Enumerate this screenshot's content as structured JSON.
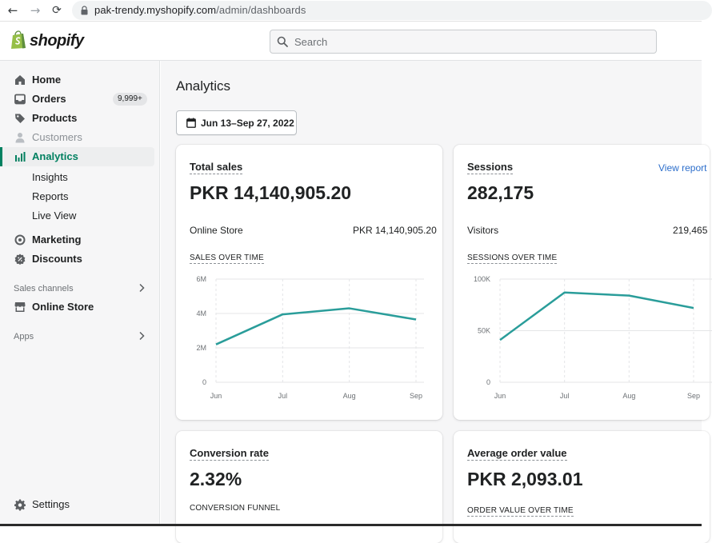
{
  "browser": {
    "url_host": "pak-trendy.myshopify.com",
    "url_path": "/admin/dashboards"
  },
  "header": {
    "logo_text": "shopify",
    "search_placeholder": "Search"
  },
  "sidebar": {
    "items": [
      {
        "label": "Home",
        "icon": "home-icon"
      },
      {
        "label": "Orders",
        "icon": "inbox-icon",
        "badge": "9,999+"
      },
      {
        "label": "Products",
        "icon": "tag-icon"
      },
      {
        "label": "Customers",
        "icon": "person-icon",
        "disabled": true
      },
      {
        "label": "Analytics",
        "icon": "bar-chart-icon",
        "active": true
      },
      {
        "label": "Marketing",
        "icon": "target-icon"
      },
      {
        "label": "Discounts",
        "icon": "discount-icon"
      }
    ],
    "analytics_subitems": [
      "Insights",
      "Reports",
      "Live View"
    ],
    "sales_channels_label": "Sales channels",
    "online_store_label": "Online Store",
    "apps_label": "Apps",
    "settings_label": "Settings"
  },
  "main": {
    "title": "Analytics",
    "date_range": "Jun 13–Sep 27, 2022",
    "view_report": "View report",
    "cards": {
      "total_sales": {
        "title": "Total sales",
        "value": "PKR 14,140,905.20",
        "row_label": "Online Store",
        "row_value": "PKR 14,140,905.20",
        "chart_label": "SALES OVER TIME"
      },
      "sessions": {
        "title": "Sessions",
        "value": "282,175",
        "row_label": "Visitors",
        "row_value": "219,465",
        "chart_label": "SESSIONS OVER TIME"
      },
      "conversion_rate": {
        "title": "Conversion rate",
        "value": "2.32%",
        "chart_label": "CONVERSION FUNNEL"
      },
      "average_order_value": {
        "title": "Average order value",
        "value": "PKR 2,093.01",
        "chart_label": "ORDER VALUE OVER TIME"
      }
    }
  },
  "colors": {
    "accent": "#008060",
    "line": "#2a9d9a",
    "link": "#2c6ecb"
  },
  "chart_data": [
    {
      "type": "line",
      "title": "SALES OVER TIME",
      "categories": [
        "Jun",
        "Jul",
        "Aug",
        "Sep"
      ],
      "yticks": [
        "0",
        "2M",
        "4M",
        "6M"
      ],
      "ylim": [
        0,
        6000000
      ],
      "values": [
        2200000,
        3950000,
        4300000,
        3650000
      ]
    },
    {
      "type": "line",
      "title": "SESSIONS OVER TIME",
      "categories": [
        "Jun",
        "Jul",
        "Aug",
        "Sep"
      ],
      "yticks": [
        "0",
        "50K",
        "100K"
      ],
      "ylim": [
        0,
        100000
      ],
      "values": [
        41000,
        87000,
        84000,
        72000
      ]
    }
  ]
}
